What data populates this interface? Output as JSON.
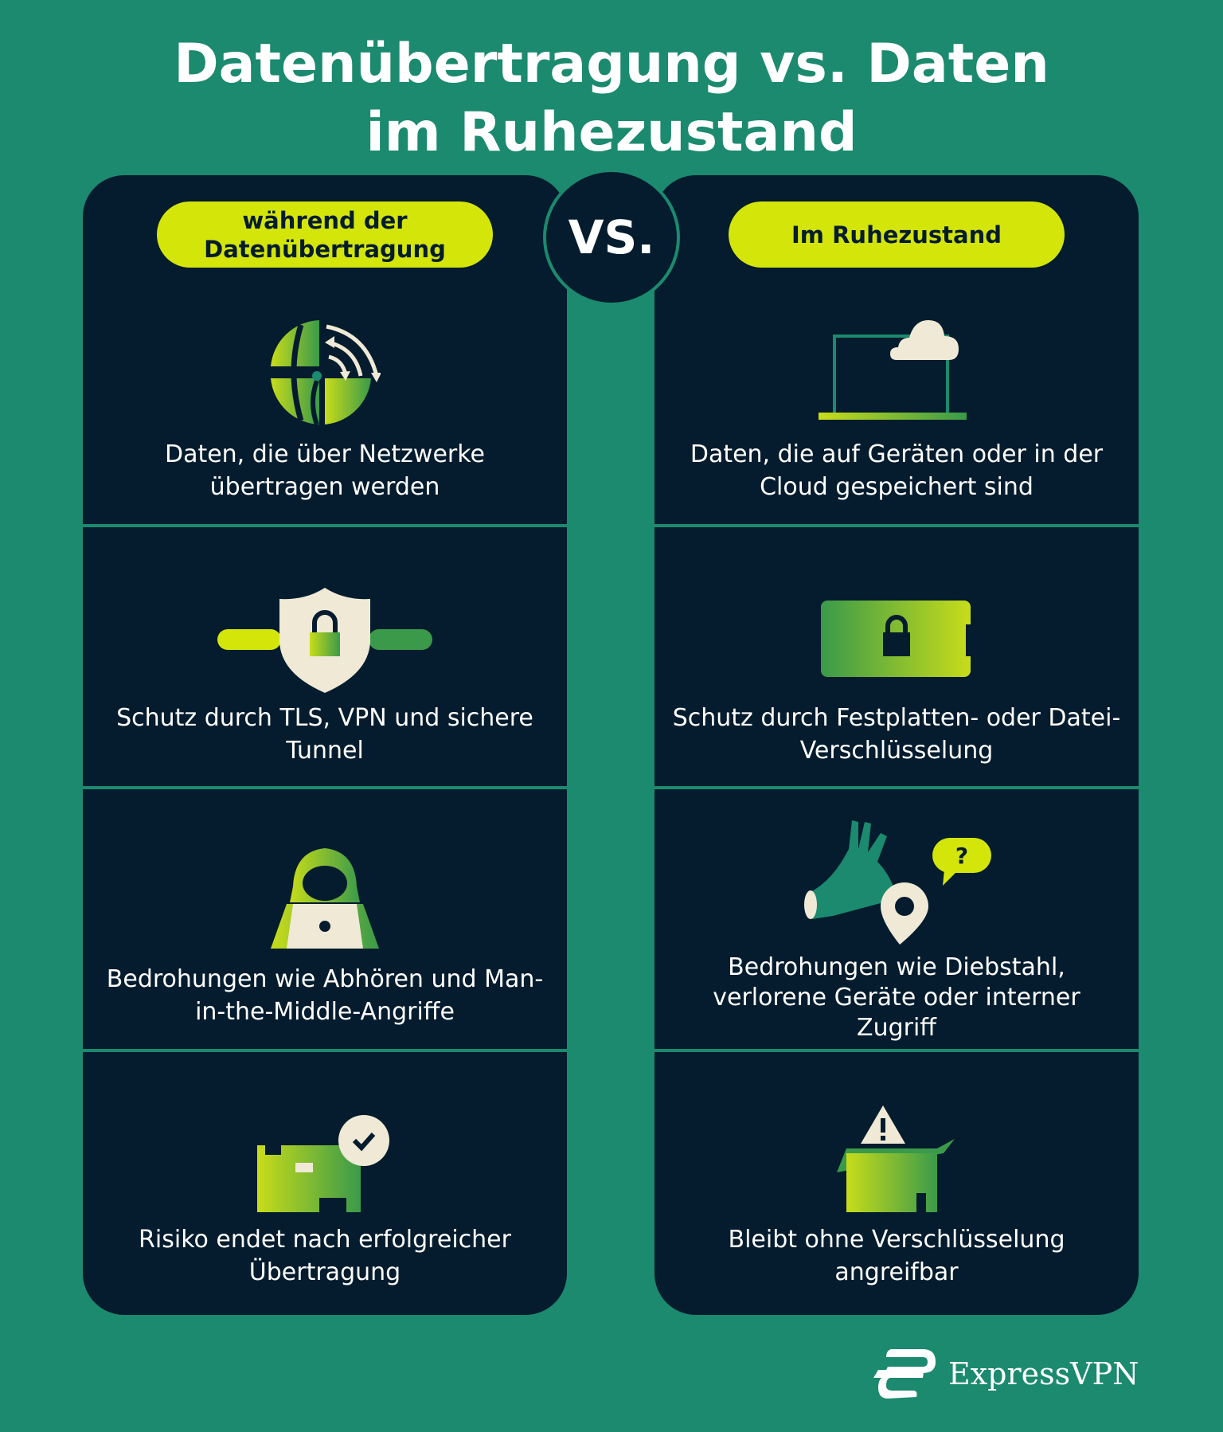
{
  "title": {
    "line1": "Datenübertragung vs. Daten",
    "line2": "im Ruhezustand"
  },
  "vs_label": "VS.",
  "colors": {
    "background": "#1b8a6e",
    "card": "#041c2e",
    "pill": "#d4e50a",
    "cream": "#efe9d6",
    "lime": "#c8dc1a",
    "green": "#3a9a4a"
  },
  "left": {
    "header": "während der Datenübertragung",
    "rows": [
      {
        "icon": "globe-transfer-icon",
        "text": "Daten, die über Netzwerke übertragen werden"
      },
      {
        "icon": "shield-lock-tunnel-icon",
        "text": "Schutz durch TLS, VPN und sichere Tunnel"
      },
      {
        "icon": "hooded-hacker-laptop-icon",
        "text": "Bedrohungen wie Abhören und Man-in-the-Middle-Angriffe"
      },
      {
        "icon": "delivered-package-check-icon",
        "text": "Risiko endet nach erfolgreicher Übertragung"
      }
    ]
  },
  "right": {
    "header": "Im Ruhezustand",
    "rows": [
      {
        "icon": "laptop-cloud-icon",
        "text": "Daten, die auf Geräten oder in der Cloud gespeichert sind"
      },
      {
        "icon": "encrypted-drive-lock-icon",
        "text": "Schutz durch Festplatten- oder Datei-Verschlüsselung"
      },
      {
        "icon": "hand-grabbing-location-icon",
        "question_mark": "?",
        "text": "Bedrohungen wie Diebstahl, verlorene Geräte oder interner Zugriff"
      },
      {
        "icon": "open-box-warning-icon",
        "text": "Bleibt ohne Verschlüsselung angreifbar"
      }
    ]
  },
  "brand": {
    "name": "ExpressVPN"
  }
}
